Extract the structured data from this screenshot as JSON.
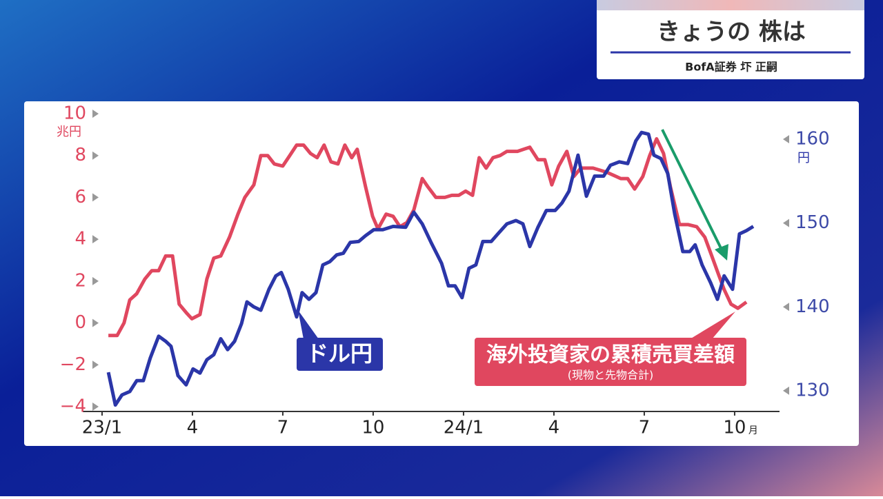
{
  "header": {
    "title": "きょうの 株は",
    "subtitle": "BofA証券 圷 正嗣"
  },
  "chart_data": {
    "type": "line",
    "ylabel": "兆円",
    "y2label": "円",
    "x_unit": "月",
    "annotations": [
      "ドル円",
      "海外投資家の累積売買差額",
      "(現物と先物合計)"
    ],
    "xlim": [
      -0.64,
      22.49
    ],
    "xticks": [
      {
        "value": 0,
        "label": "23/1"
      },
      {
        "value": 3,
        "label": "4"
      },
      {
        "value": 6,
        "label": "7"
      },
      {
        "value": 9,
        "label": "10"
      },
      {
        "value": 12,
        "label": "24/1"
      },
      {
        "value": 15,
        "label": "4"
      },
      {
        "value": 18,
        "label": "7"
      },
      {
        "value": 21,
        "label": "10"
      }
    ],
    "ylim": [
      -4,
      10
    ],
    "yticks": [
      {
        "value": -4,
        "label": "−4"
      },
      {
        "value": -2,
        "label": "−2"
      },
      0,
      2,
      4,
      6,
      8,
      10
    ],
    "y2lim": [
      128.1,
      163.04
    ],
    "y2ticks": [
      130,
      140,
      150,
      160
    ],
    "series": [
      {
        "name": "海外投資家の累積売買差額",
        "color": "#e0475f",
        "x": [
          0.21,
          0.5,
          0.73,
          0.92,
          1.15,
          1.42,
          1.65,
          1.88,
          2.11,
          2.34,
          2.56,
          2.79,
          2.98,
          3.25,
          3.48,
          3.71,
          3.94,
          4.23,
          4.51,
          4.74,
          5.04,
          5.27,
          5.5,
          5.72,
          6.0,
          6.23,
          6.46,
          6.69,
          6.92,
          7.14,
          7.37,
          7.6,
          7.83,
          8.06,
          8.29,
          8.47,
          8.75,
          8.98,
          9.16,
          9.43,
          9.66,
          9.89,
          10.12,
          10.35,
          10.63,
          10.82,
          11.08,
          11.38,
          11.61,
          11.84,
          12.07,
          12.3,
          12.52,
          12.75,
          12.98,
          13.21,
          13.44,
          13.79,
          14.2,
          14.47,
          14.7,
          14.93,
          15.16,
          15.43,
          15.66,
          15.89,
          16.3,
          16.76,
          17.22,
          17.45,
          17.68,
          17.95,
          18.18,
          18.41,
          18.64,
          18.87,
          19.17,
          19.46,
          19.74,
          20.01,
          20.24,
          20.47,
          20.65,
          20.88,
          21.11,
          21.39
        ],
        "values": [
          -0.6,
          -0.6,
          0.0,
          1.1,
          1.4,
          2.1,
          2.5,
          2.5,
          3.2,
          3.2,
          0.9,
          0.5,
          0.2,
          0.4,
          2.1,
          3.1,
          3.2,
          4.1,
          5.2,
          6.0,
          6.6,
          8.0,
          8.0,
          7.6,
          7.5,
          8.0,
          8.5,
          8.5,
          8.1,
          7.9,
          8.5,
          7.7,
          7.6,
          8.5,
          7.9,
          8.3,
          6.5,
          5.1,
          4.5,
          5.2,
          5.1,
          4.6,
          4.8,
          5.4,
          6.9,
          6.5,
          6.0,
          6.0,
          6.1,
          6.1,
          6.3,
          6.1,
          7.9,
          7.4,
          7.9,
          8.0,
          8.2,
          8.2,
          8.4,
          7.8,
          7.8,
          6.6,
          7.5,
          8.2,
          7.0,
          7.4,
          7.4,
          7.2,
          6.9,
          6.9,
          6.4,
          7.0,
          8.0,
          8.8,
          8.1,
          6.5,
          4.7,
          4.7,
          4.6,
          4.1,
          3.2,
          2.3,
          1.6,
          0.9,
          0.7,
          1.0
        ]
      },
      {
        "name": "ドル円",
        "color": "#2b36a8",
        "axis": "y2",
        "x": [
          0.21,
          0.44,
          0.66,
          0.92,
          1.15,
          1.37,
          1.6,
          1.88,
          2.11,
          2.29,
          2.52,
          2.79,
          3.02,
          3.25,
          3.48,
          3.71,
          3.94,
          4.17,
          4.4,
          4.63,
          4.81,
          5.04,
          5.27,
          5.54,
          5.77,
          5.95,
          6.18,
          6.46,
          6.64,
          6.87,
          7.1,
          7.33,
          7.56,
          7.79,
          8.01,
          8.24,
          8.52,
          8.75,
          9.02,
          9.32,
          9.66,
          10.08,
          10.35,
          10.63,
          10.92,
          11.27,
          11.5,
          11.72,
          11.95,
          12.18,
          12.41,
          12.64,
          12.92,
          13.14,
          13.44,
          13.74,
          13.97,
          14.2,
          14.47,
          14.75,
          15.04,
          15.27,
          15.5,
          15.8,
          16.08,
          16.35,
          16.65,
          16.88,
          17.17,
          17.45,
          17.72,
          17.91,
          18.14,
          18.32,
          18.55,
          18.78,
          19.01,
          19.28,
          19.51,
          19.69,
          19.92,
          20.2,
          20.43,
          20.65,
          20.93,
          21.16,
          21.39,
          21.62
        ],
        "values": [
          132.2,
          128.3,
          129.5,
          129.9,
          131.2,
          131.2,
          133.9,
          136.5,
          135.9,
          135.3,
          131.8,
          130.7,
          132.6,
          132.1,
          133.7,
          134.3,
          136.2,
          134.9,
          135.9,
          138.0,
          140.6,
          140.0,
          139.6,
          142.1,
          143.7,
          144.1,
          142.1,
          138.8,
          141.7,
          140.9,
          141.7,
          145.0,
          145.4,
          146.2,
          146.4,
          147.7,
          147.8,
          148.5,
          149.2,
          149.2,
          149.6,
          149.5,
          151.3,
          149.9,
          147.7,
          145.2,
          142.5,
          142.5,
          141.1,
          144.6,
          145.0,
          147.8,
          147.8,
          148.7,
          149.9,
          150.3,
          149.9,
          147.2,
          149.5,
          151.5,
          151.5,
          152.4,
          153.8,
          158.1,
          153.2,
          155.6,
          155.6,
          156.9,
          157.3,
          157.1,
          159.8,
          160.8,
          160.6,
          158.1,
          157.7,
          155.9,
          151.1,
          146.6,
          146.6,
          147.4,
          145.0,
          142.9,
          140.9,
          143.7,
          142.1,
          148.7,
          149.1,
          149.6
        ]
      }
    ]
  }
}
